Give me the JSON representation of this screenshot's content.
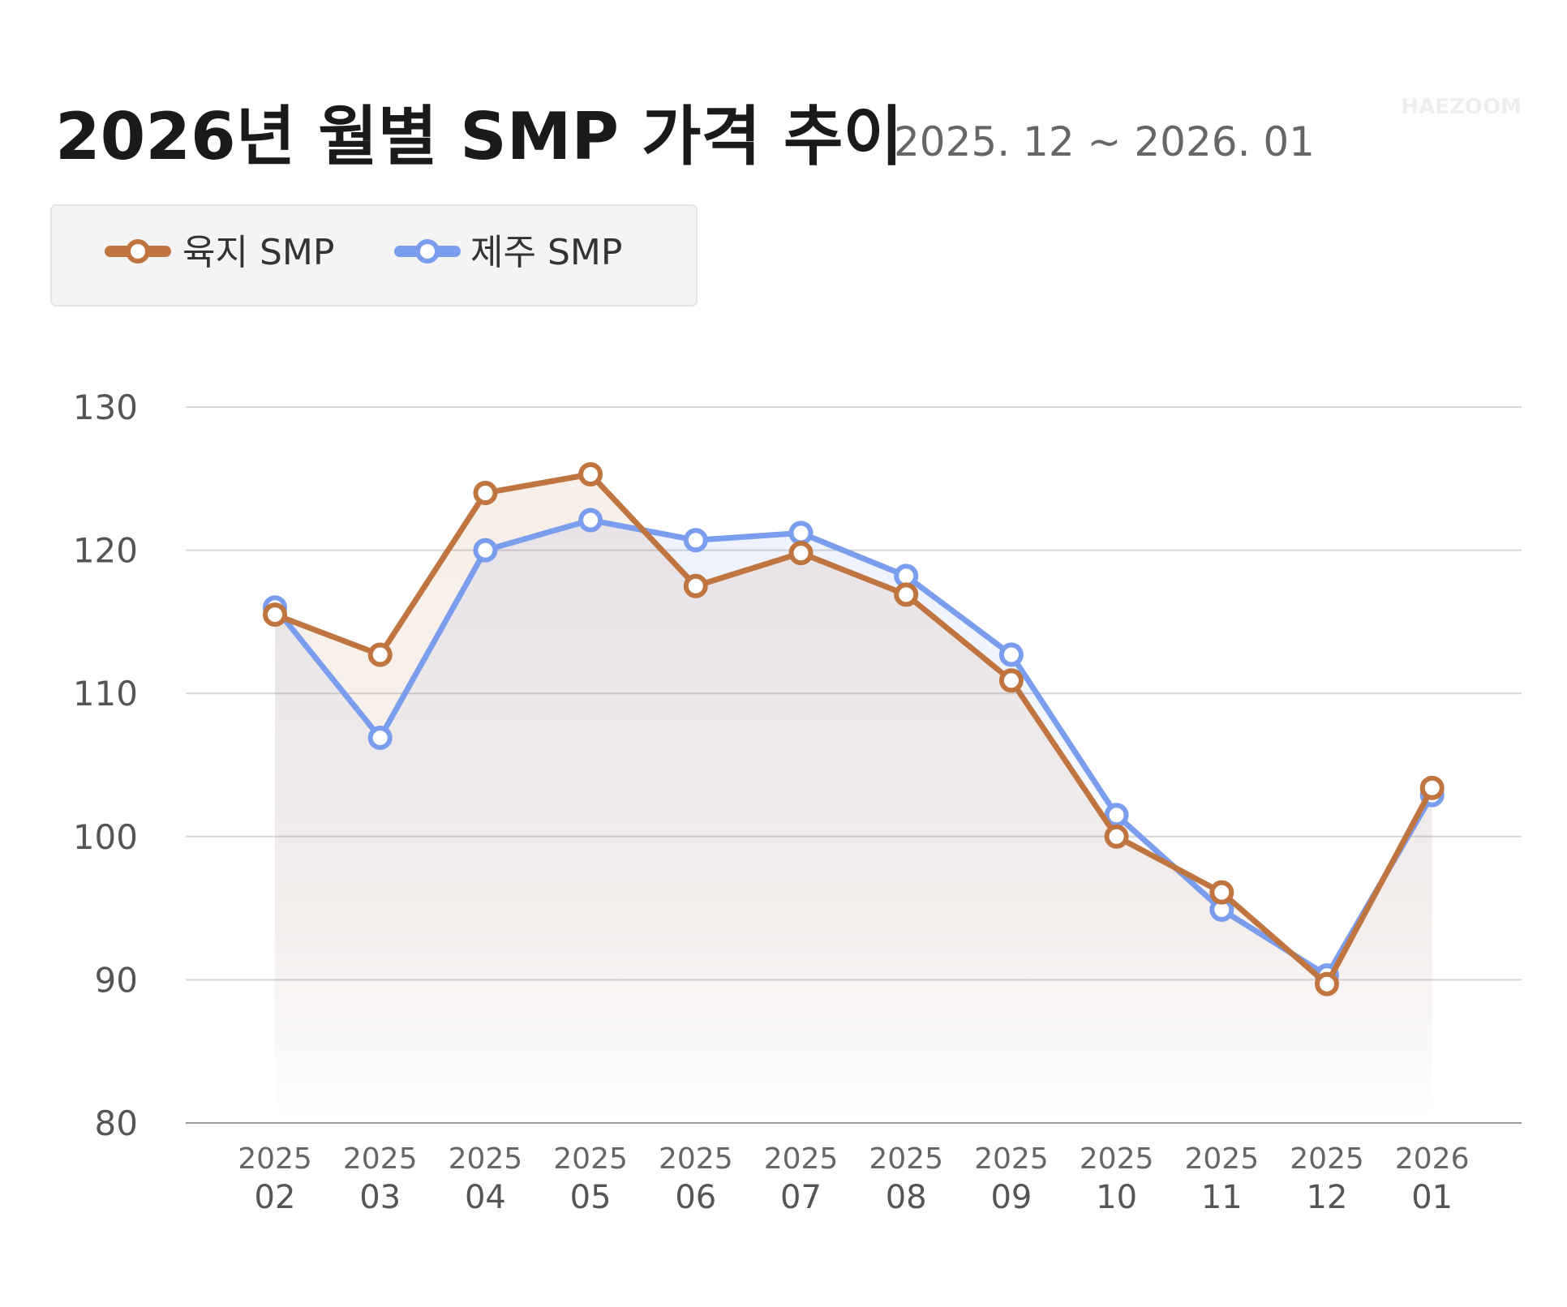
{
  "chart_data": {
    "type": "line",
    "title": "2026년 월별 SMP 가격 추이",
    "subtitle": "2025. 12 ~ 2026. 01",
    "watermark": "HAEZOOM",
    "categories": [
      [
        "2025",
        "02"
      ],
      [
        "2025",
        "03"
      ],
      [
        "2025",
        "04"
      ],
      [
        "2025",
        "05"
      ],
      [
        "2025",
        "06"
      ],
      [
        "2025",
        "07"
      ],
      [
        "2025",
        "08"
      ],
      [
        "2025",
        "09"
      ],
      [
        "2025",
        "10"
      ],
      [
        "2025",
        "11"
      ],
      [
        "2025",
        "12"
      ],
      [
        "2026",
        "01"
      ]
    ],
    "series": [
      {
        "name": "육지 SMP",
        "color": "#c07540",
        "values": [
          115.5,
          112.7,
          124.0,
          125.3,
          117.5,
          119.8,
          116.9,
          110.9,
          100.0,
          96.1,
          89.7,
          103.4
        ]
      },
      {
        "name": "제주 SMP",
        "color": "#7b9ded",
        "values": [
          116.0,
          106.9,
          120.0,
          122.1,
          120.7,
          121.2,
          118.2,
          112.7,
          101.5,
          94.9,
          90.3,
          102.9
        ]
      }
    ],
    "ylim": [
      80,
      130
    ],
    "yticks": [
      80,
      90,
      100,
      110,
      120,
      130
    ],
    "grid": true
  }
}
